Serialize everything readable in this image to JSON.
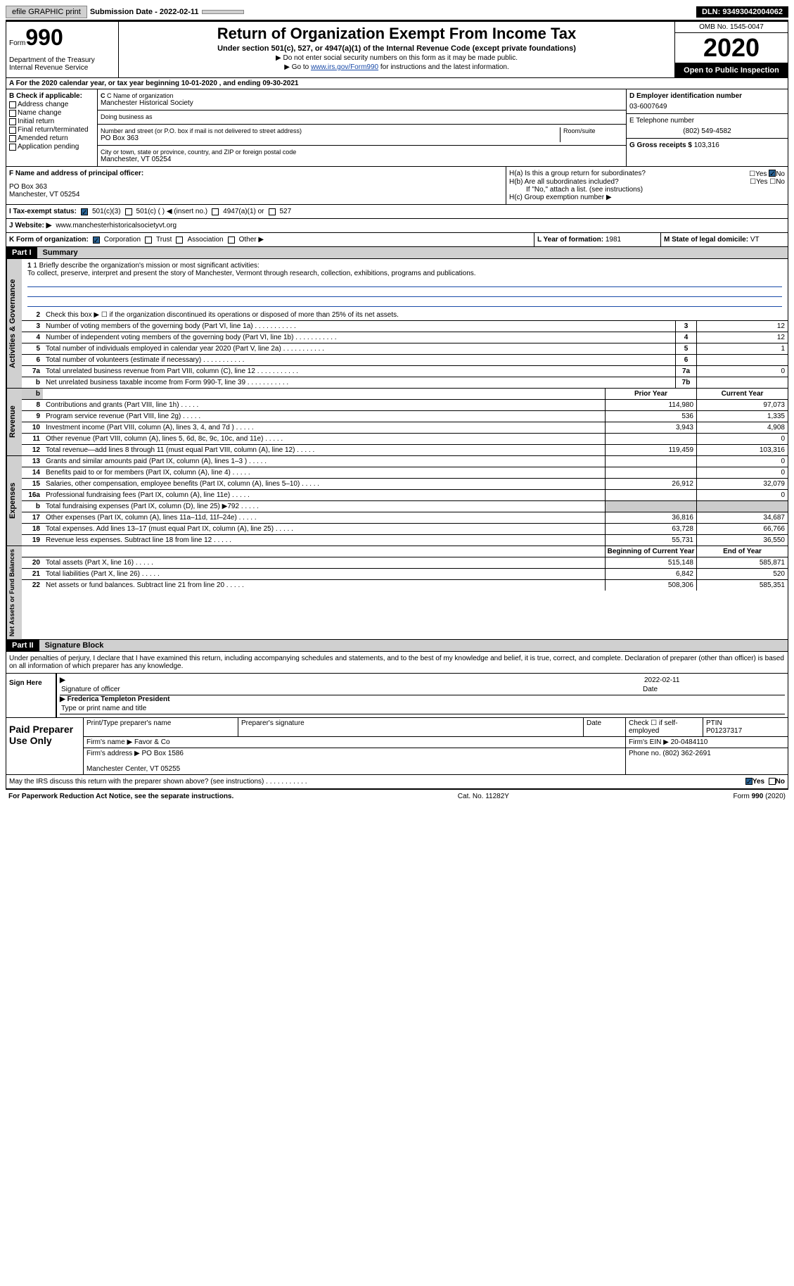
{
  "top": {
    "efile": "efile GRAPHIC print",
    "sub_label": "Submission Date - ",
    "sub_date": "2022-02-11",
    "dln_label": "DLN: ",
    "dln": "93493042004062"
  },
  "header": {
    "form_label": "Form",
    "form_num": "990",
    "dept": "Department of the Treasury\nInternal Revenue Service",
    "title": "Return of Organization Exempt From Income Tax",
    "subtitle": "Under section 501(c), 527, or 4947(a)(1) of the Internal Revenue Code (except private foundations)",
    "instr1": "▶ Do not enter social security numbers on this form as it may be made public.",
    "instr2_pre": "▶ Go to ",
    "instr2_link": "www.irs.gov/Form990",
    "instr2_post": " for instructions and the latest information.",
    "omb": "OMB No. 1545-0047",
    "year": "2020",
    "open": "Open to Public Inspection"
  },
  "row_a": "A For the 2020 calendar year, or tax year beginning 10-01-2020    , and ending 09-30-2021",
  "b": {
    "label": "B Check if applicable:",
    "items": [
      "Address change",
      "Name change",
      "Initial return",
      "Final return/terminated",
      "Amended return",
      "Application pending"
    ]
  },
  "c": {
    "name_label": "C Name of organization",
    "name": "Manchester Historical Society",
    "dba_label": "Doing business as",
    "addr_label": "Number and street (or P.O. box if mail is not delivered to street address)",
    "room_label": "Room/suite",
    "addr": "PO Box 363",
    "city_label": "City or town, state or province, country, and ZIP or foreign postal code",
    "city": "Manchester, VT  05254"
  },
  "d": {
    "label": "D Employer identification number",
    "val": "03-6007649"
  },
  "e": {
    "label": "E Telephone number",
    "val": "(802) 549-4582"
  },
  "g": {
    "label": "G Gross receipts $ ",
    "val": "103,316"
  },
  "f": {
    "label": "F  Name and address of principal officer:",
    "addr": "PO Box 363\nManchester, VT  05254"
  },
  "h": {
    "ha": "H(a)  Is this a group return for subordinates?",
    "hb": "H(b)  Are all subordinates included?",
    "hnote": "If \"No,\" attach a list. (see instructions)",
    "hc": "H(c)  Group exemption number ▶",
    "yes": "Yes",
    "no": "No"
  },
  "i": {
    "label": "I   Tax-exempt status:",
    "opts": [
      "501(c)(3)",
      "501(c) (  ) ◀ (insert no.)",
      "4947(a)(1) or",
      "527"
    ]
  },
  "j": {
    "label": "J   Website: ▶",
    "val": "  www.manchesterhistoricalsocietyvt.org"
  },
  "k": {
    "label": "K Form of organization:",
    "opts": [
      "Corporation",
      "Trust",
      "Association",
      "Other ▶"
    ]
  },
  "l": {
    "label": "L Year of formation: ",
    "val": "1981"
  },
  "m": {
    "label": "M State of legal domicile: ",
    "val": "VT"
  },
  "parts": {
    "p1": "Part I",
    "p1t": "Summary",
    "p2": "Part II",
    "p2t": "Signature Block"
  },
  "summary": {
    "q1": "1  Briefly describe the organization's mission or most significant activities:",
    "mission": "To collect, preserve, interpret and present the story of Manchester, Vermont through research, collection, exhibitions, programs and publications.",
    "q2": "Check this box ▶ ☐  if the organization discontinued its operations or disposed of more than 25% of its net assets.",
    "prior_year": "Prior Year",
    "current_year": "Current Year",
    "begin_year": "Beginning of Current Year",
    "end_year": "End of Year"
  },
  "gov_rows": [
    {
      "n": "3",
      "d": "Number of voting members of the governing body (Part VI, line 1a)",
      "b": "3",
      "v": "12"
    },
    {
      "n": "4",
      "d": "Number of independent voting members of the governing body (Part VI, line 1b)",
      "b": "4",
      "v": "12"
    },
    {
      "n": "5",
      "d": "Total number of individuals employed in calendar year 2020 (Part V, line 2a)",
      "b": "5",
      "v": "1"
    },
    {
      "n": "6",
      "d": "Total number of volunteers (estimate if necessary)",
      "b": "6",
      "v": ""
    },
    {
      "n": "7a",
      "d": "Total unrelated business revenue from Part VIII, column (C), line 12",
      "b": "7a",
      "v": "0"
    },
    {
      "n": "b",
      "d": "Net unrelated business taxable income from Form 990-T, line 39",
      "b": "7b",
      "v": ""
    }
  ],
  "rev_rows": [
    {
      "n": "8",
      "d": "Contributions and grants (Part VIII, line 1h)",
      "py": "114,980",
      "cy": "97,073"
    },
    {
      "n": "9",
      "d": "Program service revenue (Part VIII, line 2g)",
      "py": "536",
      "cy": "1,335"
    },
    {
      "n": "10",
      "d": "Investment income (Part VIII, column (A), lines 3, 4, and 7d )",
      "py": "3,943",
      "cy": "4,908"
    },
    {
      "n": "11",
      "d": "Other revenue (Part VIII, column (A), lines 5, 6d, 8c, 9c, 10c, and 11e)",
      "py": "",
      "cy": "0"
    },
    {
      "n": "12",
      "d": "Total revenue—add lines 8 through 11 (must equal Part VIII, column (A), line 12)",
      "py": "119,459",
      "cy": "103,316"
    }
  ],
  "exp_rows": [
    {
      "n": "13",
      "d": "Grants and similar amounts paid (Part IX, column (A), lines 1–3 )",
      "py": "",
      "cy": "0"
    },
    {
      "n": "14",
      "d": "Benefits paid to or for members (Part IX, column (A), line 4)",
      "py": "",
      "cy": "0"
    },
    {
      "n": "15",
      "d": "Salaries, other compensation, employee benefits (Part IX, column (A), lines 5–10)",
      "py": "26,912",
      "cy": "32,079"
    },
    {
      "n": "16a",
      "d": "Professional fundraising fees (Part IX, column (A), line 11e)",
      "py": "",
      "cy": "0"
    },
    {
      "n": "b",
      "d": "Total fundraising expenses (Part IX, column (D), line 25) ▶792",
      "py": "grey",
      "cy": "grey"
    },
    {
      "n": "17",
      "d": "Other expenses (Part IX, column (A), lines 11a–11d, 11f–24e)",
      "py": "36,816",
      "cy": "34,687"
    },
    {
      "n": "18",
      "d": "Total expenses. Add lines 13–17 (must equal Part IX, column (A), line 25)",
      "py": "63,728",
      "cy": "66,766"
    },
    {
      "n": "19",
      "d": "Revenue less expenses. Subtract line 18 from line 12",
      "py": "55,731",
      "cy": "36,550"
    }
  ],
  "na_rows": [
    {
      "n": "20",
      "d": "Total assets (Part X, line 16)",
      "py": "515,148",
      "cy": "585,871"
    },
    {
      "n": "21",
      "d": "Total liabilities (Part X, line 26)",
      "py": "6,842",
      "cy": "520"
    },
    {
      "n": "22",
      "d": "Net assets or fund balances. Subtract line 21 from line 20",
      "py": "508,306",
      "cy": "585,351"
    }
  ],
  "vtabs": {
    "gov": "Activities & Governance",
    "rev": "Revenue",
    "exp": "Expenses",
    "na": "Net Assets or Fund Balances"
  },
  "sig": {
    "decl": "Under penalties of perjury, I declare that I have examined this return, including accompanying schedules and statements, and to the best of my knowledge and belief, it is true, correct, and complete. Declaration of preparer (other than officer) is based on all information of which preparer has any knowledge.",
    "sign_here": "Sign Here",
    "sig_officer": "Signature of officer",
    "date": "Date",
    "sig_date": "2022-02-11",
    "name": "Frederica Templeton  President",
    "name_label": "Type or print name and title"
  },
  "prep": {
    "title": "Paid Preparer Use Only",
    "h1": "Print/Type preparer's name",
    "h2": "Preparer's signature",
    "h3": "Date",
    "h4": "Check ☐  if self-employed",
    "h5_label": "PTIN",
    "h5": "P01237317",
    "firm_label": "Firm's name    ▶ ",
    "firm": "Favor & Co",
    "ein_label": "Firm's EIN ▶ ",
    "ein": "20-0484110",
    "addr_label": "Firm's address ▶ ",
    "addr": "PO Box 1586\n\nManchester Center, VT  05255",
    "phone_label": "Phone no. ",
    "phone": "(802) 362-2691"
  },
  "discuss": {
    "q": "May the IRS discuss this return with the preparer shown above? (see instructions)",
    "yes": "Yes",
    "no": "No"
  },
  "footer": {
    "l": "For Paperwork Reduction Act Notice, see the separate instructions.",
    "m": "Cat. No. 11282Y",
    "r": "Form 990 (2020)"
  }
}
